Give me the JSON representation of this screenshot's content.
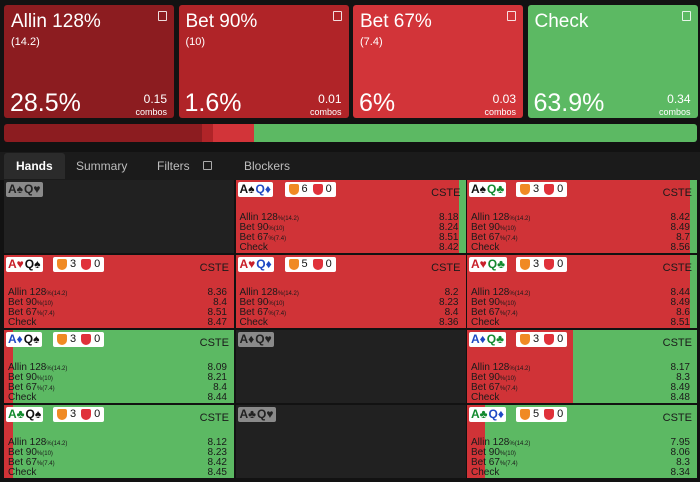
{
  "actions": [
    {
      "name": "Allin 128%",
      "size": "(14.2)",
      "frequency": 28.5,
      "frequency_label": "28.5%",
      "combos": 0.15,
      "color": "#8c1c20"
    },
    {
      "name": "Bet 90%",
      "size": "(10)",
      "frequency": 1.6,
      "frequency_label": "1.6%",
      "combos": 0.01,
      "color": "#b02428"
    },
    {
      "name": "Bet 67%",
      "size": "(7.4)",
      "frequency": 6,
      "frequency_label": "6%",
      "combos": 0.03,
      "color": "#d23439"
    },
    {
      "name": "Check",
      "frequency": 63.9,
      "frequency_label": "63.9%",
      "combos": 0.34,
      "color": "#5cb963"
    }
  ],
  "combos_unit": "combos",
  "tabs": [
    "Hands",
    "Summary",
    "Filters",
    "Blockers"
  ],
  "grid": {
    "tag": "CSTE",
    "lines": [
      {
        "name": "Allin 128",
        "sub": "%(14.2)"
      },
      {
        "name": "Bet 90",
        "sub": "%(10)"
      },
      {
        "name": "Bet 67",
        "sub": "%(7.4)"
      },
      {
        "name": "Check"
      }
    ],
    "cells": [
      {
        "cards": [
          "A♠",
          "Q♥"
        ],
        "blocked": true
      },
      {
        "cards": [
          "A♠",
          "Q♦"
        ],
        "icons": [
          6,
          0
        ],
        "evs": [
          8.18,
          8.24,
          8.51,
          8.42
        ],
        "bet_share": 97
      },
      {
        "cards": [
          "A♠",
          "Q♣"
        ],
        "icons": [
          3,
          0
        ],
        "evs": [
          8.42,
          8.49,
          8.7,
          8.56
        ],
        "bet_share": 97
      },
      {
        "cards": [
          "A♥",
          "Q♠"
        ],
        "icons": [
          3,
          0
        ],
        "evs": [
          8.36,
          8.4,
          8.51,
          8.47
        ],
        "bet_share": 100
      },
      {
        "cards": [
          "A♥",
          "Q♦"
        ],
        "icons": [
          5,
          0
        ],
        "evs": [
          8.2,
          8.23,
          8.4,
          8.36
        ],
        "bet_share": 100
      },
      {
        "cards": [
          "A♥",
          "Q♣"
        ],
        "icons": [
          3,
          0
        ],
        "evs": [
          8.44,
          8.49,
          8.6,
          8.51
        ],
        "bet_share": 97
      },
      {
        "cards": [
          "A♦",
          "Q♠"
        ],
        "icons": [
          3,
          0
        ],
        "evs": [
          8.09,
          8.21,
          8.4,
          8.44
        ],
        "bet_share": 4
      },
      {
        "cards": [
          "A♦",
          "Q♥"
        ],
        "blocked": true
      },
      {
        "cards": [
          "A♦",
          "Q♣"
        ],
        "icons": [
          3,
          0
        ],
        "evs": [
          8.17,
          8.3,
          8.49,
          8.48
        ],
        "bet_share": 46
      },
      {
        "cards": [
          "A♣",
          "Q♠"
        ],
        "icons": [
          3,
          0
        ],
        "evs": [
          8.12,
          8.23,
          8.42,
          8.45
        ],
        "bet_share": 4
      },
      {
        "cards": [
          "A♣",
          "Q♥"
        ],
        "blocked": true
      },
      {
        "cards": [
          "A♣",
          "Q♦"
        ],
        "icons": [
          5,
          0
        ],
        "evs": [
          7.95,
          8.06,
          8.3,
          8.34
        ],
        "bet_share": 8
      }
    ]
  }
}
